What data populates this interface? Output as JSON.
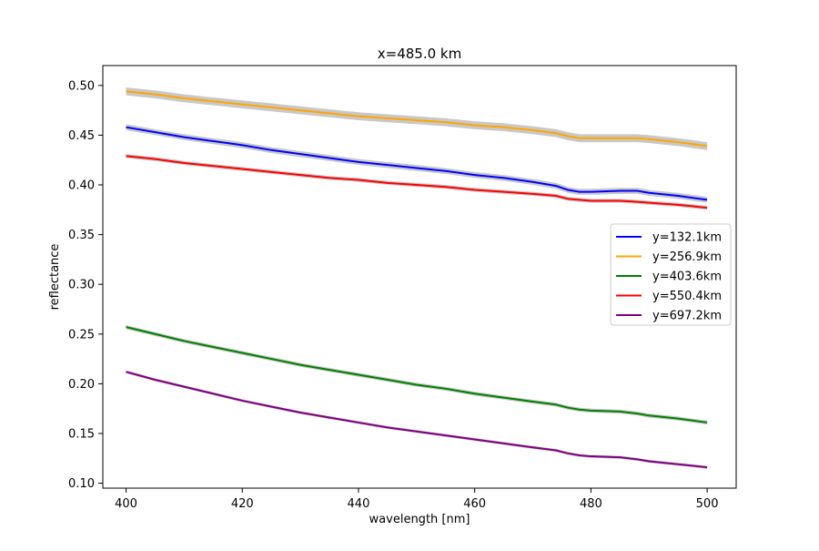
{
  "chart_data": {
    "type": "line",
    "title": "x=485.0 km",
    "xlabel": "wavelength [nm]",
    "ylabel": "reflectance",
    "xlim": [
      396,
      505
    ],
    "ylim": [
      0.095,
      0.52
    ],
    "xticks": [
      400,
      420,
      440,
      460,
      480,
      500
    ],
    "yticks": [
      0.1,
      0.15,
      0.2,
      0.25,
      0.3,
      0.35,
      0.4,
      0.45,
      0.5
    ],
    "ytick_labels": [
      "0.10",
      "0.15",
      "0.20",
      "0.25",
      "0.30",
      "0.35",
      "0.40",
      "0.45",
      "0.50"
    ],
    "grid": false,
    "legend_position": "center-right",
    "uncertainty_band_color": "#c8c8c8",
    "series": [
      {
        "name": "y=132.1km",
        "color": "#0000ff",
        "band": 0.003,
        "x": [
          400,
          405,
          410,
          415,
          420,
          425,
          430,
          435,
          440,
          445,
          450,
          455,
          460,
          465,
          470,
          474,
          476,
          478,
          480,
          485,
          488,
          490,
          495,
          500
        ],
        "y": [
          0.458,
          0.453,
          0.448,
          0.444,
          0.44,
          0.435,
          0.431,
          0.427,
          0.423,
          0.42,
          0.417,
          0.414,
          0.41,
          0.407,
          0.403,
          0.399,
          0.395,
          0.393,
          0.393,
          0.394,
          0.394,
          0.392,
          0.389,
          0.385
        ]
      },
      {
        "name": "y=256.9km",
        "color": "#ffa500",
        "band": 0.004,
        "x": [
          400,
          405,
          410,
          415,
          420,
          425,
          430,
          435,
          440,
          445,
          450,
          455,
          460,
          465,
          470,
          474,
          476,
          478,
          480,
          485,
          488,
          490,
          495,
          500
        ],
        "y": [
          0.494,
          0.491,
          0.487,
          0.484,
          0.481,
          0.478,
          0.475,
          0.472,
          0.469,
          0.467,
          0.465,
          0.463,
          0.46,
          0.458,
          0.455,
          0.452,
          0.449,
          0.447,
          0.447,
          0.447,
          0.447,
          0.446,
          0.443,
          0.439
        ]
      },
      {
        "name": "y=403.6km",
        "color": "#008000",
        "band": 0.002,
        "x": [
          400,
          405,
          410,
          415,
          420,
          425,
          430,
          435,
          440,
          445,
          450,
          455,
          460,
          465,
          470,
          474,
          476,
          478,
          480,
          485,
          488,
          490,
          495,
          500
        ],
        "y": [
          0.257,
          0.25,
          0.243,
          0.237,
          0.231,
          0.225,
          0.219,
          0.214,
          0.209,
          0.204,
          0.199,
          0.195,
          0.19,
          0.186,
          0.182,
          0.179,
          0.176,
          0.174,
          0.173,
          0.172,
          0.17,
          0.168,
          0.165,
          0.161
        ]
      },
      {
        "name": "y=550.4km",
        "color": "#ff0000",
        "band": 0.002,
        "x": [
          400,
          405,
          410,
          415,
          420,
          425,
          430,
          435,
          440,
          445,
          450,
          455,
          460,
          465,
          470,
          474,
          476,
          478,
          480,
          485,
          488,
          490,
          495,
          500
        ],
        "y": [
          0.429,
          0.426,
          0.422,
          0.419,
          0.416,
          0.413,
          0.41,
          0.407,
          0.405,
          0.402,
          0.4,
          0.398,
          0.395,
          0.393,
          0.391,
          0.389,
          0.386,
          0.385,
          0.384,
          0.384,
          0.383,
          0.382,
          0.38,
          0.377
        ]
      },
      {
        "name": "y=697.2km",
        "color": "#800080",
        "band": 0.0015,
        "x": [
          400,
          405,
          410,
          415,
          420,
          425,
          430,
          435,
          440,
          445,
          450,
          455,
          460,
          465,
          470,
          474,
          476,
          478,
          480,
          485,
          488,
          490,
          495,
          500
        ],
        "y": [
          0.212,
          0.204,
          0.197,
          0.19,
          0.183,
          0.177,
          0.171,
          0.166,
          0.161,
          0.156,
          0.152,
          0.148,
          0.144,
          0.14,
          0.136,
          0.133,
          0.13,
          0.128,
          0.127,
          0.126,
          0.124,
          0.122,
          0.119,
          0.116
        ]
      }
    ]
  }
}
